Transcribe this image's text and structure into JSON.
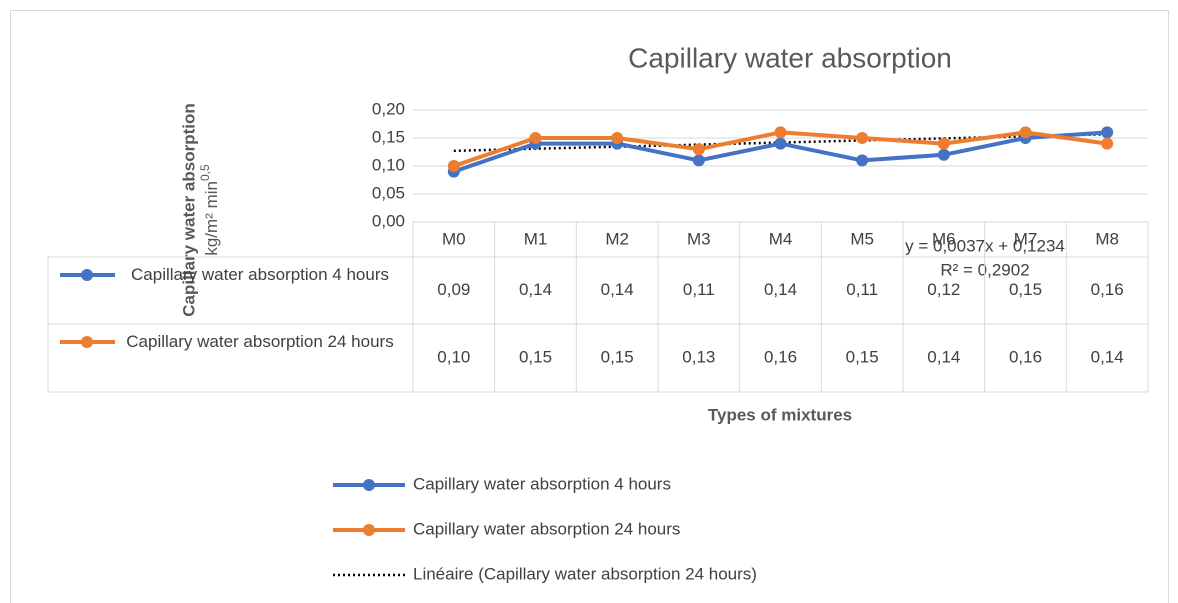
{
  "chart_data": {
    "type": "line",
    "title": "Capillary water absorption",
    "y_axis_title": "Capillary water absorption",
    "y_axis_unit": "kg/m² min",
    "y_axis_unit_exponent": "0,5",
    "x_axis_title": "Types of mixtures",
    "categories": [
      "M0",
      "M1",
      "M2",
      "M3",
      "M4",
      "M5",
      "M6",
      "M7",
      "M8"
    ],
    "series": [
      {
        "name": "Capillary water absorption 4 hours",
        "color": "#4472c4",
        "values": [
          0.09,
          0.14,
          0.14,
          0.11,
          0.14,
          0.11,
          0.12,
          0.15,
          0.16
        ],
        "value_labels": [
          "0,09",
          "0,14",
          "0,14",
          "0,11",
          "0,14",
          "0,11",
          "0,12",
          "0,15",
          "0,16"
        ]
      },
      {
        "name": "Capillary water absorption 24 hours",
        "color": "#ed7d31",
        "values": [
          0.1,
          0.15,
          0.15,
          0.13,
          0.16,
          0.15,
          0.14,
          0.16,
          0.14
        ],
        "value_labels": [
          "0,10",
          "0,15",
          "0,15",
          "0,13",
          "0,16",
          "0,15",
          "0,14",
          "0,16",
          "0,14"
        ]
      }
    ],
    "trendline": {
      "name": "Linéaire (Capillary water absorption 24 hours)",
      "color": "#000000",
      "slope": 0.0037,
      "intercept": 0.1234,
      "equation": "y = 0,0037x + 0,1234",
      "r_squared": "R² = 0,2902"
    },
    "ylim": [
      0,
      0.2
    ],
    "yticks": [
      {
        "value": 0,
        "label": "0,00"
      },
      {
        "value": 0.05,
        "label": "0,05"
      },
      {
        "value": 0.1,
        "label": "0,10"
      },
      {
        "value": 0.15,
        "label": "0,15"
      },
      {
        "value": 0.2,
        "label": "0,20"
      }
    ],
    "grid": true,
    "legend": "bottom"
  }
}
